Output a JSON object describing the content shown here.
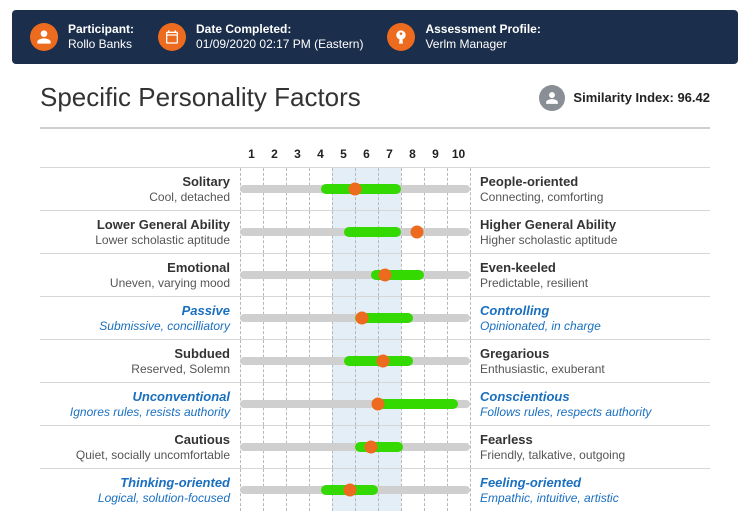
{
  "header": {
    "participant": {
      "label": "Participant:",
      "value": "Rollo Banks"
    },
    "date": {
      "label": "Date Completed:",
      "value": "01/09/2020 02:17 PM (Eastern)"
    },
    "profile": {
      "label": "Assessment Profile:",
      "value": "Verlm Manager"
    }
  },
  "title": "Specific Personality Factors",
  "similarity": {
    "label": "Similarity Index:",
    "value": "96.42"
  },
  "scale": {
    "min": 1,
    "max": 10,
    "ticks": [
      "1",
      "2",
      "3",
      "4",
      "5",
      "6",
      "7",
      "8",
      "9",
      "10"
    ]
  },
  "band": {
    "from": 5,
    "to": 7
  },
  "colors": {
    "accent": "#ed6b1f",
    "range": "#33d900",
    "track": "#cfcfcf",
    "band": "#e4eef7",
    "header_bg": "#1b2e4b",
    "italic_text": "#1a6fbf"
  },
  "factors": [
    {
      "left": "Solitary",
      "left_sub": "Cool, detached",
      "right": "People-oriented",
      "right_sub": "Connecting, comforting",
      "italic": false,
      "range_from": 4.0,
      "range_to": 7.5,
      "marker": 5.5
    },
    {
      "left": "Lower General Ability",
      "left_sub": "Lower scholastic aptitude",
      "right": "Higher General Ability",
      "right_sub": "Higher scholastic aptitude",
      "italic": false,
      "range_from": 5.0,
      "range_to": 7.5,
      "marker": 8.2
    },
    {
      "left": "Emotional",
      "left_sub": "Uneven, varying mood",
      "right": "Even-keeled",
      "right_sub": "Predictable, resilient",
      "italic": false,
      "range_from": 6.2,
      "range_to": 8.5,
      "marker": 6.8
    },
    {
      "left": "Passive",
      "left_sub": "Submissive, concilliatory",
      "right": "Controlling",
      "right_sub": "Opinionated, in charge",
      "italic": true,
      "range_from": 5.5,
      "range_to": 8.0,
      "marker": 5.8
    },
    {
      "left": "Subdued",
      "left_sub": "Reserved, Solemn",
      "right": "Gregarious",
      "right_sub": "Enthusiastic, exuberant",
      "italic": false,
      "range_from": 5.0,
      "range_to": 8.0,
      "marker": 6.7
    },
    {
      "left": "Unconventional",
      "left_sub": "Ignores rules, resists authority",
      "right": "Conscientious",
      "right_sub": "Follows rules, respects authority",
      "italic": true,
      "range_from": 6.3,
      "range_to": 10.0,
      "marker": 6.5
    },
    {
      "left": "Cautious",
      "left_sub": "Quiet, socially uncomfortable",
      "right": "Fearless",
      "right_sub": "Friendly, talkative, outgoing",
      "italic": false,
      "range_from": 5.5,
      "range_to": 7.6,
      "marker": 6.2
    },
    {
      "left": "Thinking-oriented",
      "left_sub": "Logical, solution-focused",
      "right": "Feeling-oriented",
      "right_sub": "Empathic, intuitive, artistic",
      "italic": true,
      "range_from": 4.0,
      "range_to": 6.5,
      "marker": 5.3
    }
  ]
}
